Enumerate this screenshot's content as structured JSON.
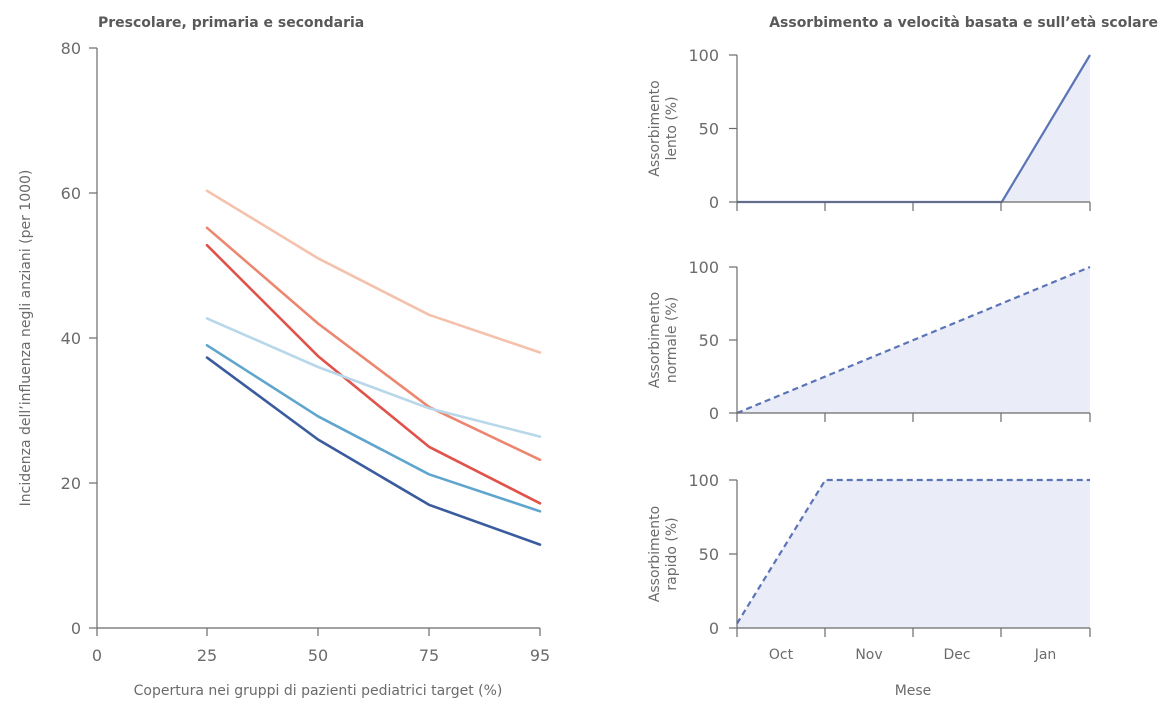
{
  "chart_data": [
    {
      "type": "line",
      "title": "Prescolare, primaria e secondaria",
      "xlabel": "Copertura nei gruppi di pazienti pediatrici target (%)",
      "ylabel": "Incidenza dell’influenza negli anziani (per 1000)",
      "x_ticks": [
        "0",
        "25",
        "50",
        "75",
        "95"
      ],
      "y_ticks": [
        "0",
        "20",
        "40",
        "60",
        "80"
      ],
      "ylim": [
        0,
        80
      ],
      "x": [
        25,
        50,
        75,
        95
      ],
      "series": [
        {
          "values": [
            60.3,
            51.0,
            43.2,
            38.0
          ],
          "color": "#f5c1ac"
        },
        {
          "values": [
            55.2,
            42.0,
            30.5,
            23.2
          ],
          "color": "#ec8670"
        },
        {
          "values": [
            52.8,
            37.5,
            25.0,
            17.2
          ],
          "color": "#e0524a"
        },
        {
          "values": [
            42.7,
            36.0,
            30.3,
            26.4
          ],
          "color": "#b8d8ea"
        },
        {
          "values": [
            39.0,
            29.2,
            21.2,
            16.1
          ],
          "color": "#5fa5cd"
        },
        {
          "values": [
            37.3,
            26.0,
            17.0,
            11.5
          ],
          "color": "#3a5b9e"
        }
      ]
    },
    {
      "type": "area",
      "title": "Assorbimento a velocità basata e sull’età scolare",
      "xlabel": "Mese",
      "months": [
        "Oct",
        "Nov",
        "Dec",
        "Jan"
      ],
      "y_ticks": [
        "0",
        "50",
        "100"
      ],
      "ylim": [
        0,
        100
      ],
      "panels": [
        {
          "ylabel_lines": [
            "Assorbimento",
            "lento (%)"
          ],
          "x": [
            0,
            3,
            4
          ],
          "values": [
            0,
            0,
            100
          ],
          "dashed": false
        },
        {
          "ylabel_lines": [
            "Assorbimento",
            "normale (%)"
          ],
          "x": [
            0,
            4
          ],
          "values": [
            0,
            100
          ],
          "dashed": true
        },
        {
          "ylabel_lines": [
            "Assorbimento",
            "rapido (%)"
          ],
          "x": [
            0,
            1,
            4
          ],
          "values": [
            3,
            100,
            100
          ],
          "dashed": true
        }
      ],
      "line_color": "#5b74b8",
      "fill_color": "#eaecf7"
    }
  ]
}
